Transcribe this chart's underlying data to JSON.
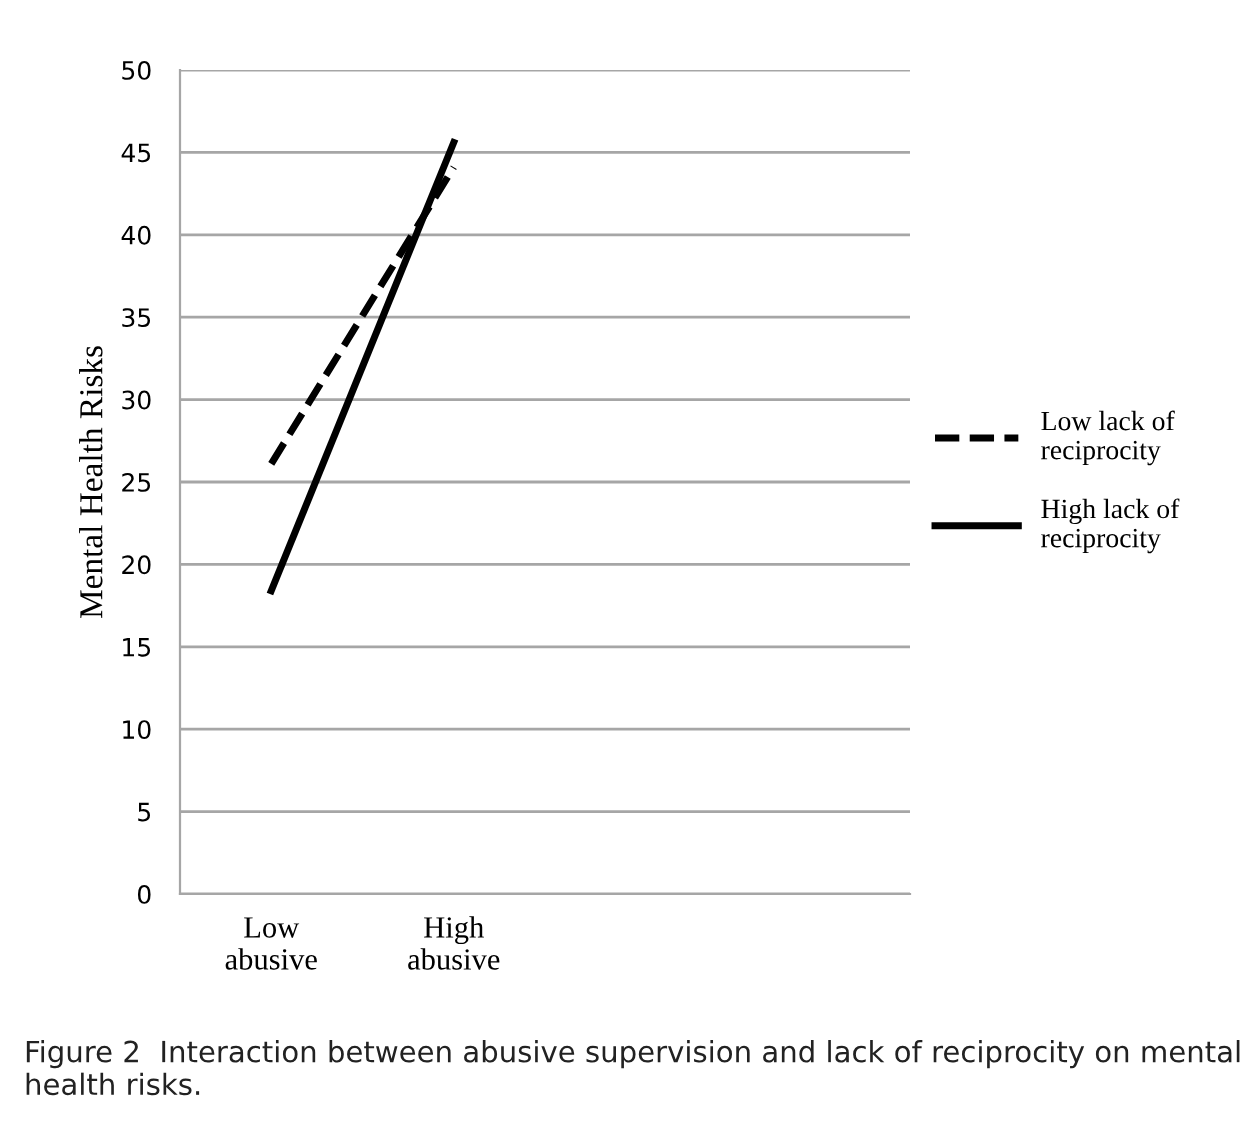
{
  "chart_data": {
    "type": "line",
    "ylabel": "Mental Health Risks",
    "categories": [
      "Low\nabusive",
      "High\nabusive",
      null,
      null
    ],
    "series": [
      {
        "name": "Low lack of\nreciprocity",
        "color": "#000000",
        "line_style": "dashed",
        "values": [
          26.1,
          44.1,
          null,
          null
        ]
      },
      {
        "name": "High lack of\nreciprocity",
        "color": "#000000",
        "line_style": "solid",
        "values": [
          18.4,
          45.6,
          null,
          null
        ]
      }
    ],
    "ylim": [
      0,
      50
    ],
    "yticks": [
      0,
      5,
      10,
      15,
      20,
      25,
      30,
      35,
      40,
      45,
      50
    ],
    "grid": "y",
    "legend": "right",
    "marker": "none",
    "annotations": [
      "Figure 2  Interaction between abusive supervision and lack of reciprocity on mental health risks."
    ]
  }
}
